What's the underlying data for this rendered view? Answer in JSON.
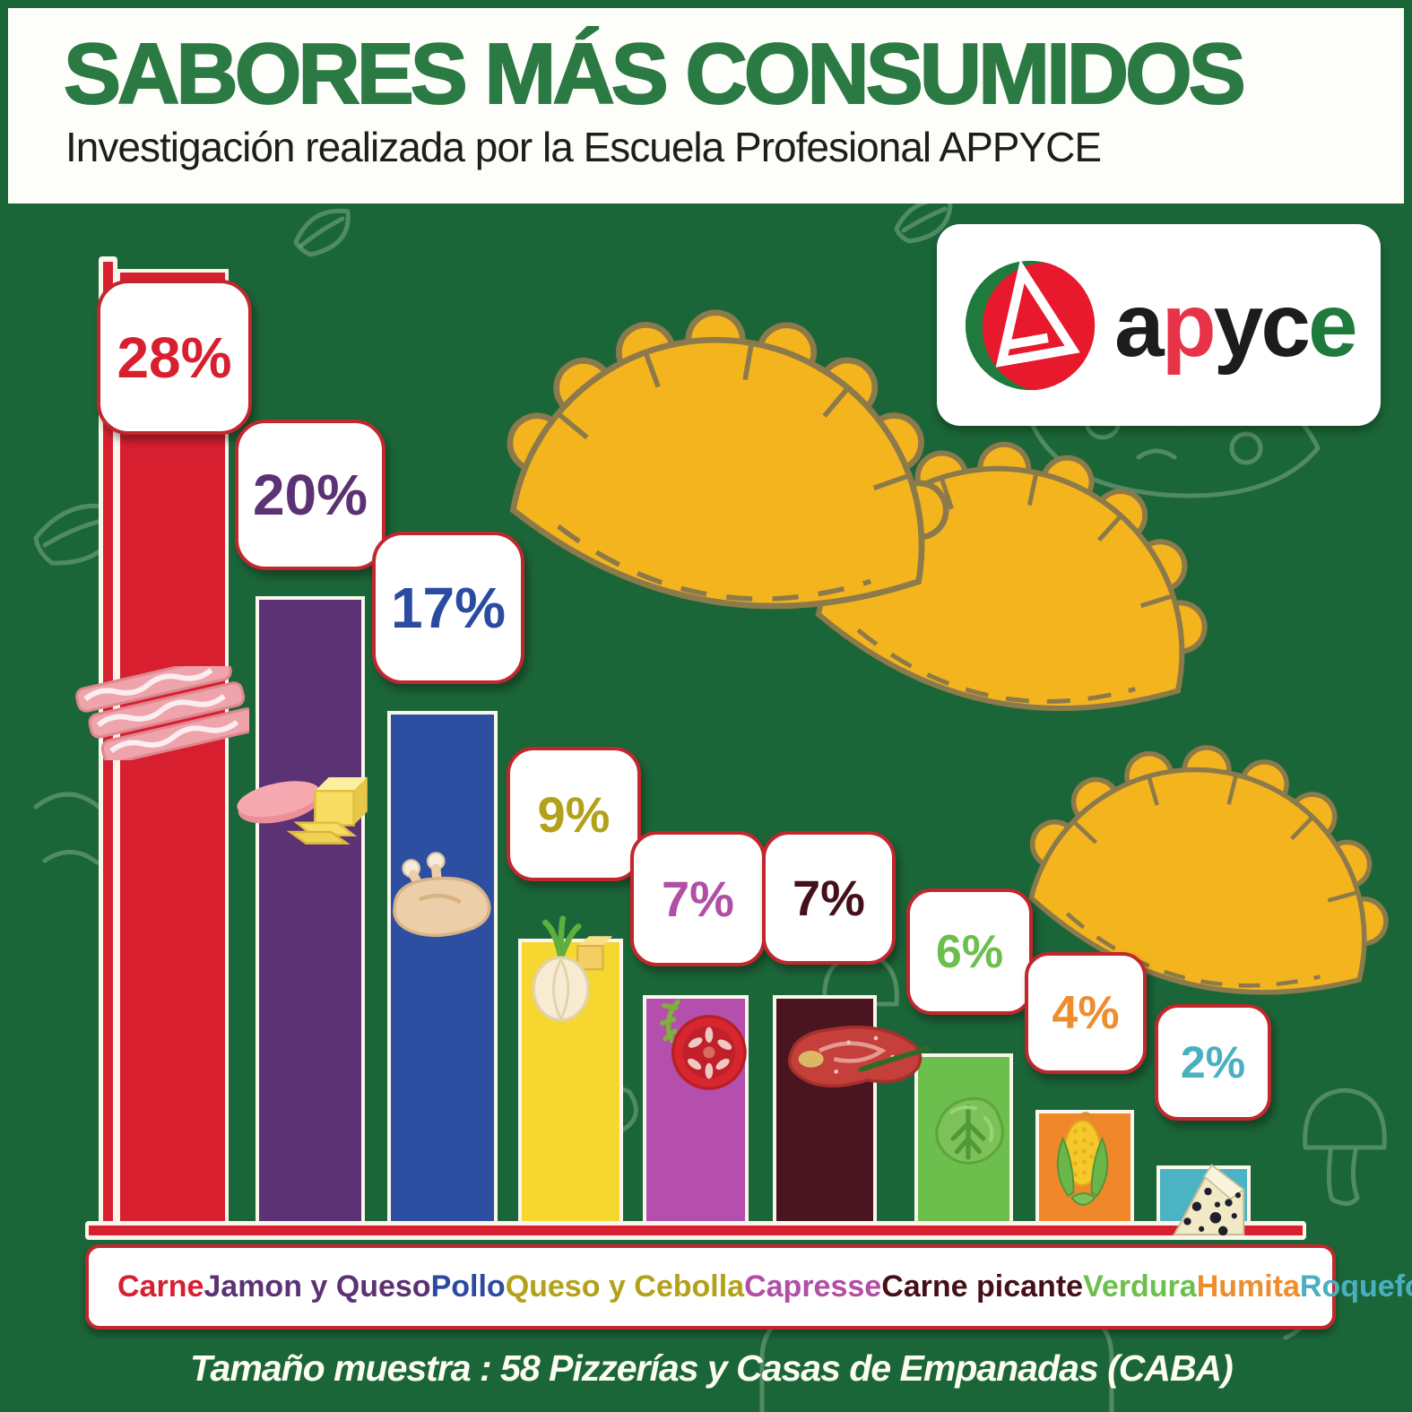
{
  "header": {
    "title": "SABORES MÁS CONSUMIDOS",
    "subtitle": "Investigación realizada por la Escuela Profesional APPYCE"
  },
  "logo": {
    "brand": "apyce",
    "word_letters": [
      {
        "char": "a",
        "color": "#1c1c1c"
      },
      {
        "char": "p",
        "color": "#e73248"
      },
      {
        "char": "y",
        "color": "#1c1c1c"
      },
      {
        "char": "c",
        "color": "#1c1c1c"
      },
      {
        "char": "e",
        "color": "#1f7a3d"
      }
    ],
    "mark_colors": {
      "green": "#1f7a3d",
      "red": "#e8192c",
      "triangle": "#ffffff"
    }
  },
  "chart_data": {
    "type": "bar",
    "title": "SABORES MÁS CONSUMIDOS",
    "unit": "%",
    "legend_position": "bottom",
    "grid": false,
    "axes_labeled": false,
    "categories": [
      "Carne",
      "Jamon y Queso",
      "Pollo",
      "Queso y Cebolla",
      "Capresse",
      "Carne picante",
      "Verdura",
      "Humita",
      "Roquefort"
    ],
    "values": [
      28,
      20,
      17,
      9,
      7,
      7,
      6,
      4,
      2
    ],
    "items": [
      {
        "label": "Carne",
        "value": 28,
        "pct_label": "28%",
        "bar_color": "#d81f30",
        "text_color": "#d81f30",
        "icon": "bacon"
      },
      {
        "label": "Jamon y Queso",
        "value": 20,
        "pct_label": "20%",
        "bar_color": "#5b3274",
        "text_color": "#5b3274",
        "icon": "ham-and-cheese"
      },
      {
        "label": "Pollo",
        "value": 17,
        "pct_label": "17%",
        "bar_color": "#2d4fa2",
        "text_color": "#2b4aa2",
        "icon": "chicken"
      },
      {
        "label": "Queso y Cebolla",
        "value": 9,
        "pct_label": "9%",
        "bar_color": "#f5d730",
        "text_color": "#b3a11b",
        "icon": "onion-and-cheese"
      },
      {
        "label": "Capresse",
        "value": 7,
        "pct_label": "7%",
        "bar_color": "#b44fad",
        "text_color": "#b04fa5",
        "icon": "tomato"
      },
      {
        "label": "Carne picante",
        "value": 7,
        "pct_label": "7%",
        "bar_color": "#4a1420",
        "text_color": "#451019",
        "icon": "spicy-steak"
      },
      {
        "label": "Verdura",
        "value": 6,
        "pct_label": "6%",
        "bar_color": "#6cbf4c",
        "text_color": "#6cbf4c",
        "icon": "lettuce"
      },
      {
        "label": "Humita",
        "value": 4,
        "pct_label": "4%",
        "bar_color": "#f0882b",
        "text_color": "#ee8d2d",
        "icon": "corn"
      },
      {
        "label": "Roquefort",
        "value": 2,
        "pct_label": "2%",
        "bar_color": "#4cb3c4",
        "text_color": "#4ab0c0",
        "icon": "blue-cheese"
      }
    ]
  },
  "footer": {
    "note": "Tamaño muestra : 58 Pizzerías y Casas de Empanadas (CABA)"
  },
  "colors": {
    "background": "#1b6638",
    "header_bg": "#fdfdfa",
    "title": "#2b7a43",
    "callout_border": "#c1272d",
    "axis": "#d81f30",
    "empanada_fill": "#f4b41e",
    "empanada_outline": "#8c7a4b",
    "doodle": "#a9c9ae"
  }
}
